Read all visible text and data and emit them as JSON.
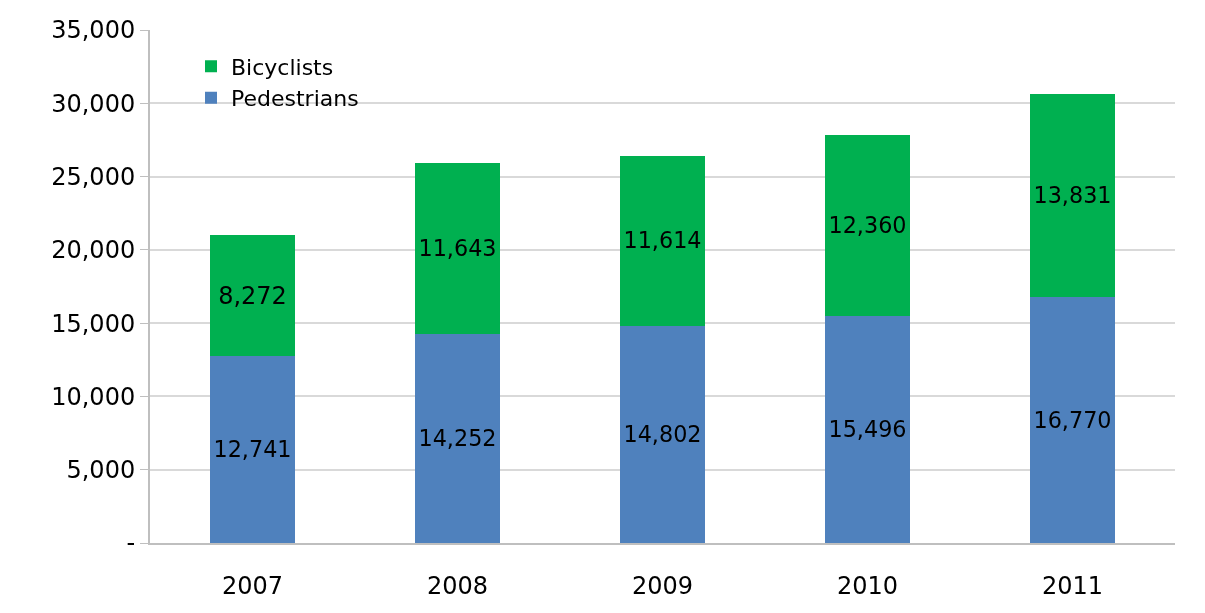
{
  "chart_data": {
    "type": "bar",
    "stacked": true,
    "categories": [
      "2007",
      "2008",
      "2009",
      "2010",
      "2011"
    ],
    "series": [
      {
        "name": "Pedestrians",
        "color": "#4f81bd",
        "values": [
          12741,
          14252,
          14802,
          15496,
          16770
        ],
        "value_labels": [
          "12,741",
          "14,252",
          "14,802",
          "15,496",
          "16,770"
        ]
      },
      {
        "name": "Bicyclists",
        "color": "#00b050",
        "values": [
          8272,
          11643,
          11614,
          12360,
          13831
        ],
        "value_labels": [
          "8,272",
          "11,643",
          "11,614",
          "12,360",
          "13,831"
        ]
      }
    ],
    "ylim": [
      0,
      35000
    ],
    "yticks": [
      {
        "value": 0,
        "label": "-"
      },
      {
        "value": 5000,
        "label": "5,000"
      },
      {
        "value": 10000,
        "label": "10,000"
      },
      {
        "value": 15000,
        "label": "15,000"
      },
      {
        "value": 20000,
        "label": "20,000"
      },
      {
        "value": 25000,
        "label": "25,000"
      },
      {
        "value": 30000,
        "label": "30,000"
      },
      {
        "value": 35000,
        "label": "35,000"
      }
    ],
    "grid": "y",
    "legend": "top left"
  }
}
